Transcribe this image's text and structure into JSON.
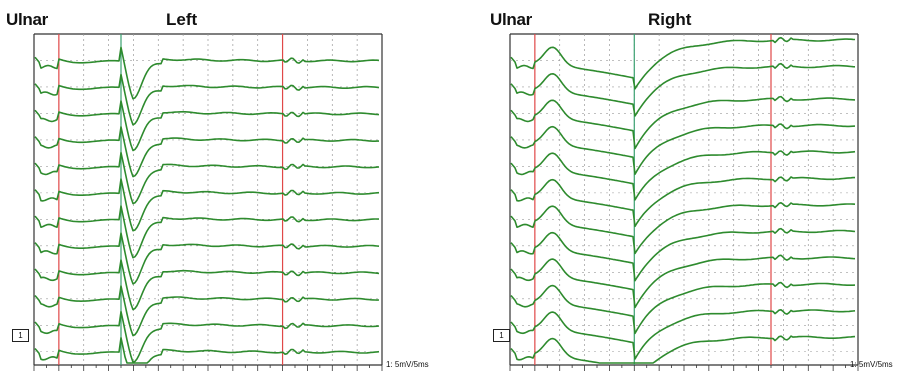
{
  "panels": [
    {
      "nerve": "Ulnar",
      "side": "Left",
      "channel": "1",
      "scale": "1: 5mV/5ms"
    },
    {
      "nerve": "Ulnar",
      "side": "Right",
      "channel": "1",
      "scale": "1: 5mV/5ms"
    }
  ],
  "colors": {
    "trace": "#2e8b2e",
    "marker_red": "#e04848",
    "marker_green": "#3aa070",
    "grid": "#9a9a9a",
    "frame": "#333333"
  },
  "chart_data": [
    {
      "type": "line",
      "title": "Left",
      "nerve": "Ulnar",
      "xlabel": "",
      "ylabel": "",
      "x_unit_per_division": "5 ms",
      "y_unit_per_division": "5 mV",
      "traces": 12,
      "grid": true,
      "markers": [
        {
          "name": "red-marker-1",
          "x_div": 1.0
        },
        {
          "name": "green-marker",
          "x_div": 3.5
        },
        {
          "name": "red-marker-2",
          "x_div": 10.0
        }
      ]
    },
    {
      "type": "line",
      "title": "Right",
      "nerve": "Ulnar",
      "xlabel": "",
      "ylabel": "",
      "x_unit_per_division": "5 ms",
      "y_unit_per_division": "5 mV",
      "traces": 12,
      "grid": true,
      "markers": [
        {
          "name": "red-marker-1",
          "x_div": 1.0
        },
        {
          "name": "green-marker",
          "x_div": 5.0
        },
        {
          "name": "red-marker-2",
          "x_div": 10.5
        }
      ]
    }
  ]
}
